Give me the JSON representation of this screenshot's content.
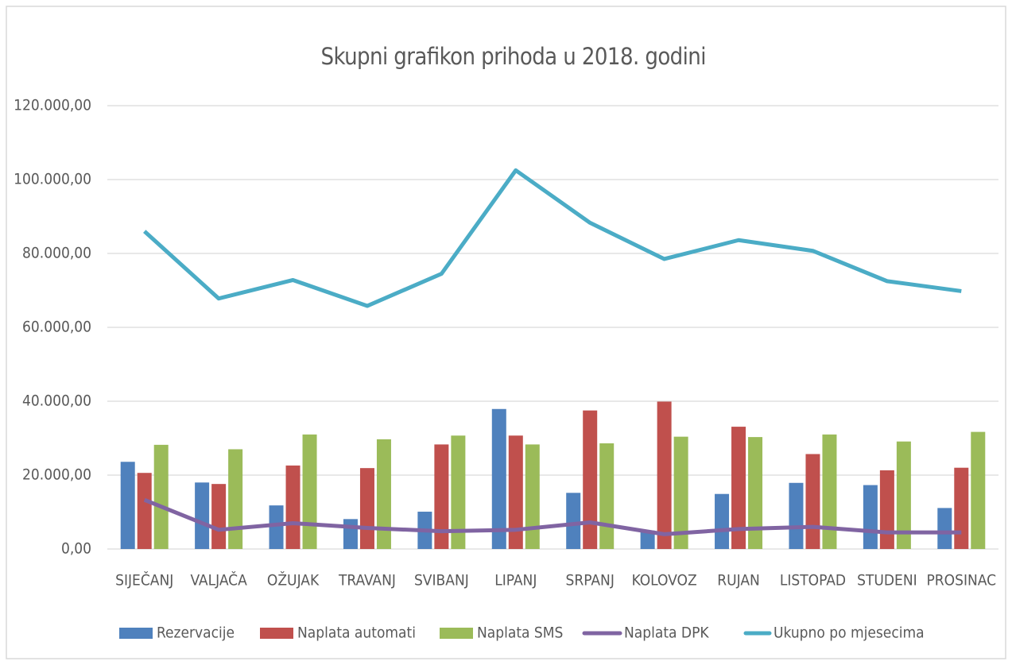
{
  "chart_data": {
    "type": "bar",
    "title": "Skupni grafikon prihoda u 2018. godini",
    "categories": [
      "SIJEČANJ",
      "VALJAČA",
      "OŽUJAK",
      "TRAVANJ",
      "SVIBANJ",
      "LIPANJ",
      "SRPANJ",
      "KOLOVOZ",
      "RUJAN",
      "LISTOPAD",
      "STUDENI",
      "PROSINAC"
    ],
    "series": [
      {
        "name": "Rezervacije",
        "type": "bar",
        "color": "#4f81bd",
        "values": [
          23600,
          18000,
          11800,
          8100,
          10100,
          37900,
          15200,
          5000,
          14900,
          17900,
          17300,
          11100
        ]
      },
      {
        "name": "Naplata automati",
        "type": "bar",
        "color": "#c0504d",
        "values": [
          20600,
          17600,
          22600,
          21900,
          28300,
          30700,
          37500,
          39900,
          33100,
          25700,
          21300,
          22000
        ]
      },
      {
        "name": "Naplata SMS",
        "type": "bar",
        "color": "#9bbb59",
        "values": [
          28200,
          27000,
          31000,
          29700,
          30700,
          28300,
          28600,
          30400,
          30300,
          31000,
          29100,
          31700
        ]
      },
      {
        "name": "Naplata DPK",
        "type": "line",
        "color": "#8064a2",
        "values": [
          13300,
          5200,
          7000,
          5700,
          4800,
          5200,
          7200,
          4000,
          5400,
          6000,
          4500,
          4500
        ]
      },
      {
        "name": "Ukupno po mjesecima",
        "type": "line",
        "color": "#4bacc6",
        "values": [
          86000,
          67800,
          72800,
          65800,
          74500,
          102500,
          88300,
          78500,
          83600,
          80700,
          72500,
          69800
        ]
      }
    ],
    "ylim": [
      0,
      120000
    ],
    "yticks": [
      {
        "value": 0,
        "label": "0,00"
      },
      {
        "value": 20000,
        "label": "20.000,00"
      },
      {
        "value": 40000,
        "label": "40.000,00"
      },
      {
        "value": 60000,
        "label": "60.000,00"
      },
      {
        "value": 80000,
        "label": "80.000,00"
      },
      {
        "value": 100000,
        "label": "100.000,00"
      },
      {
        "value": 120000,
        "label": "120.000,00"
      }
    ],
    "grid": true,
    "legend": "bottom"
  }
}
